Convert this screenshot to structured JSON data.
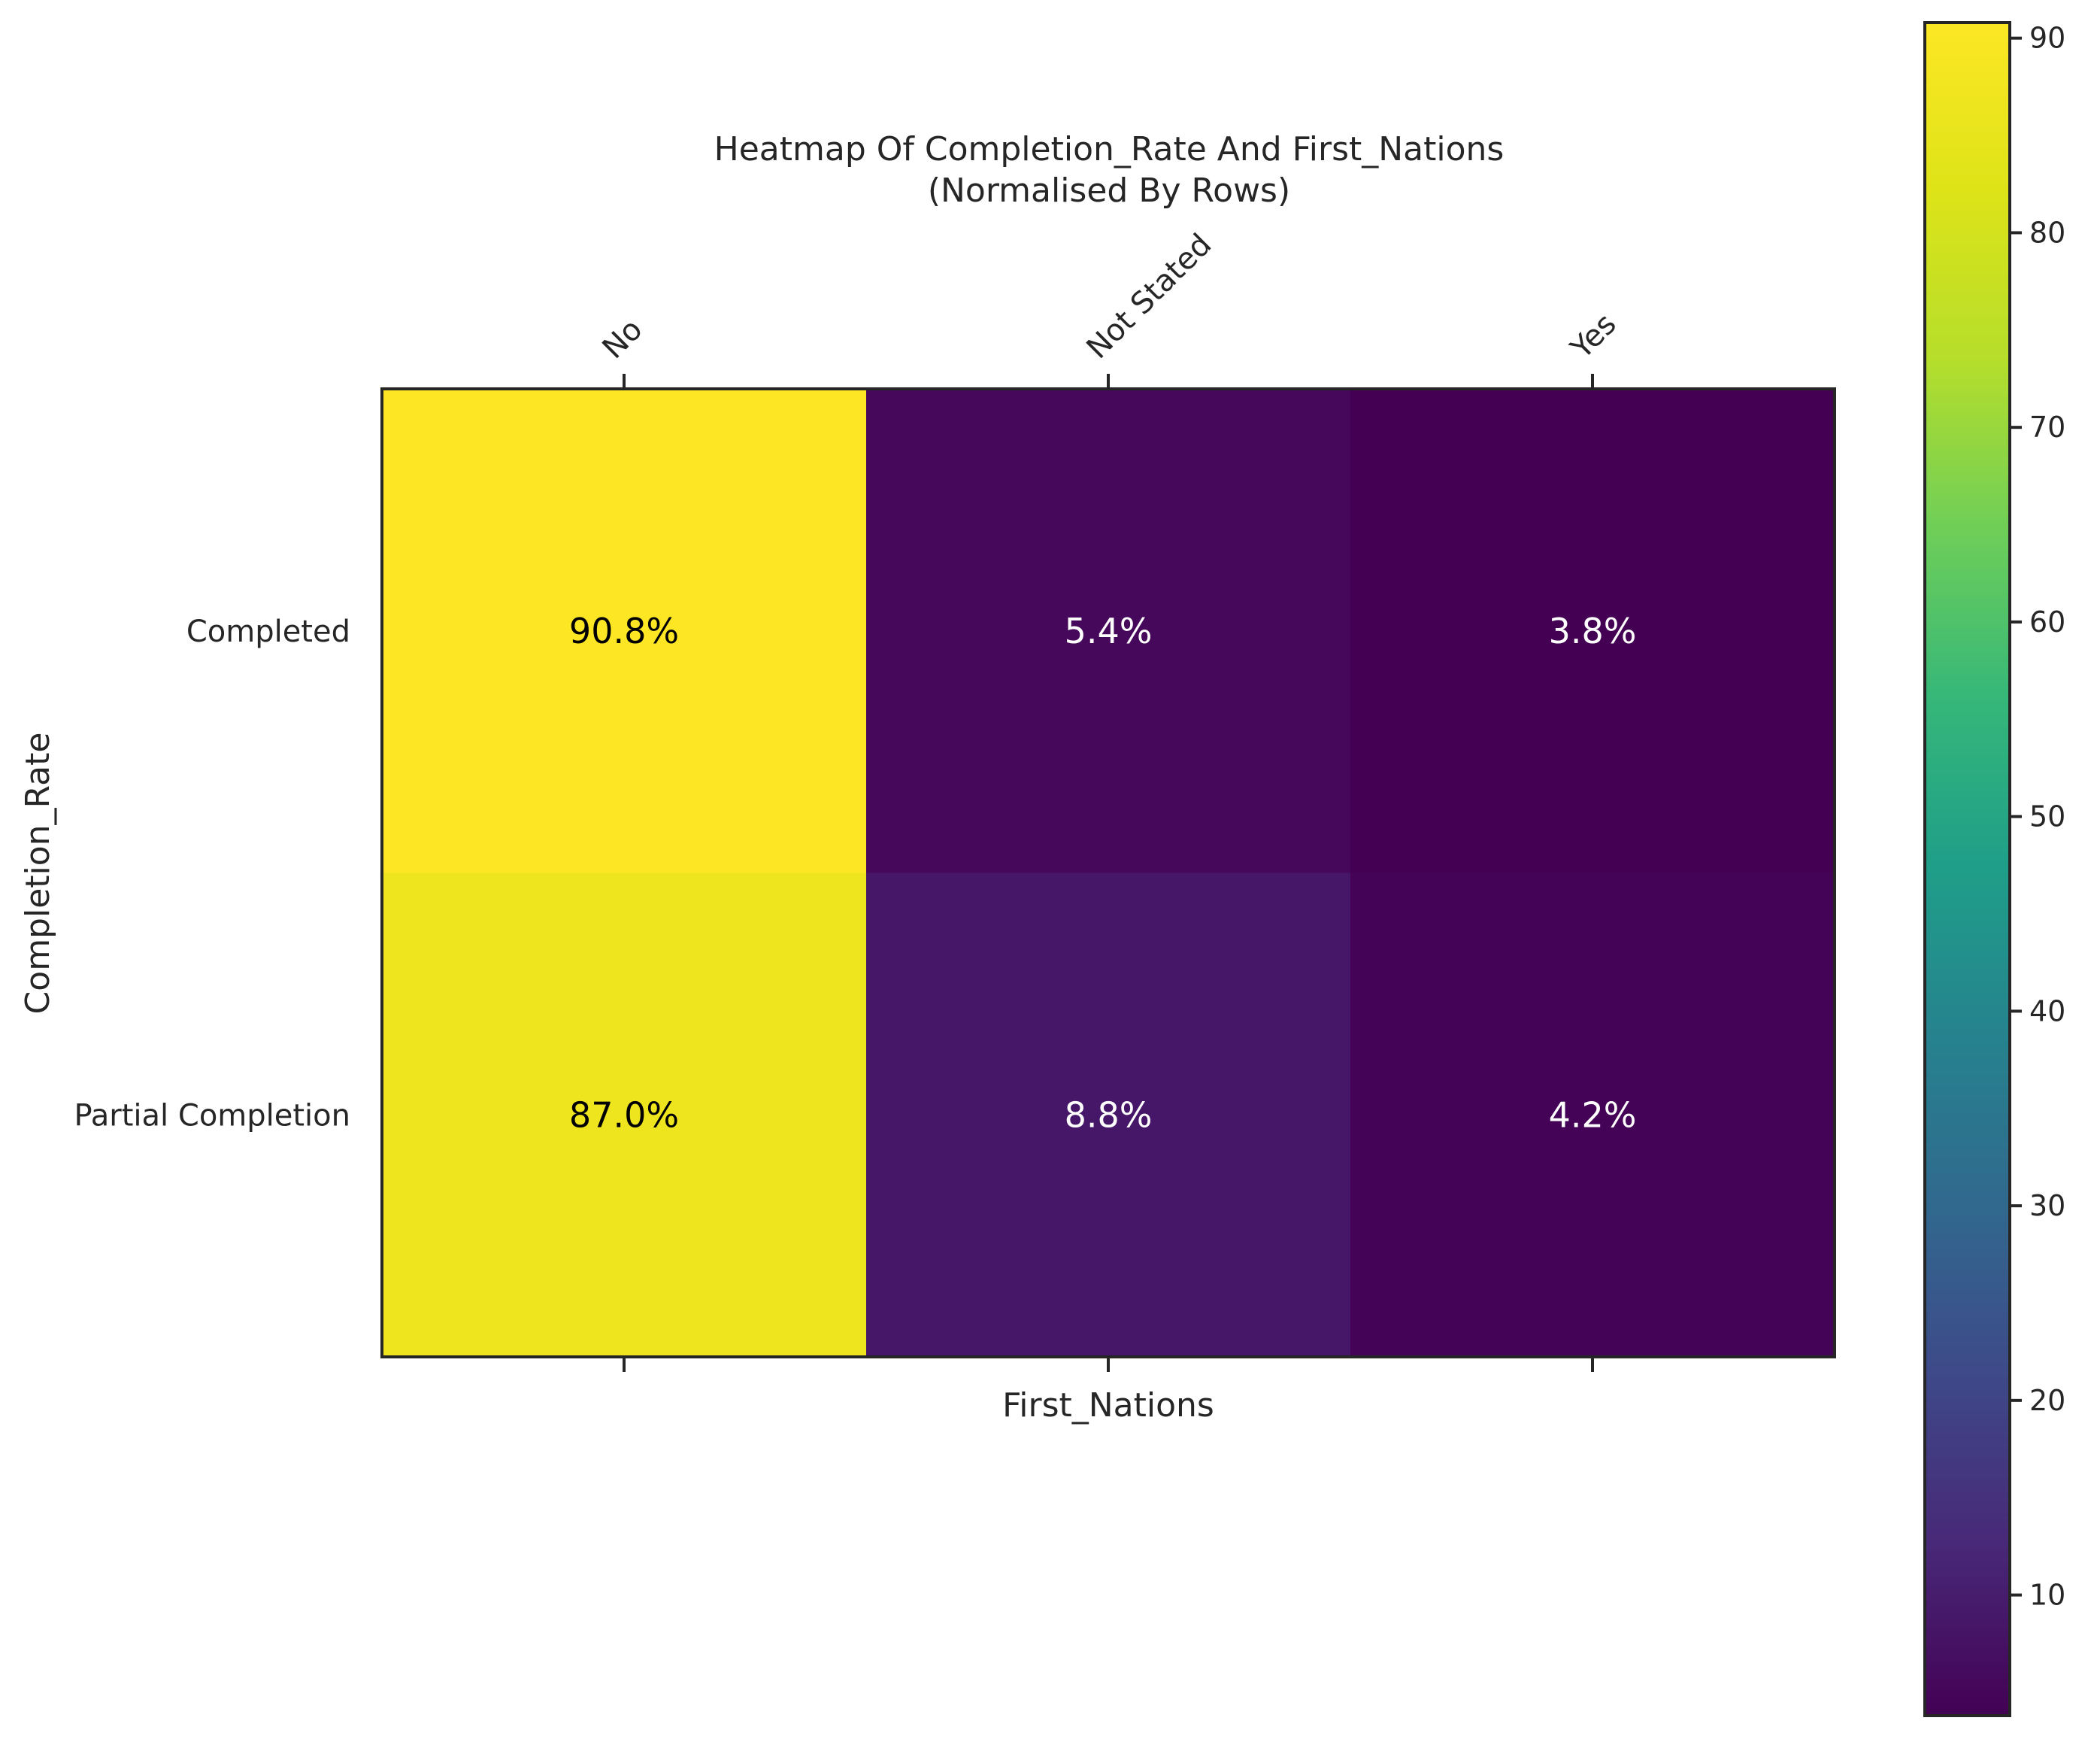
{
  "chart_data": {
    "type": "heatmap",
    "title": "Heatmap Of Completion_Rate And First_Nations",
    "subtitle": "(Normalised By Rows)",
    "xlabel": "First_Nations",
    "ylabel": "Completion_Rate",
    "x_categories": [
      "No",
      "Not Stated",
      "Yes"
    ],
    "y_categories": [
      "Completed",
      "Partial Completion"
    ],
    "values": [
      [
        90.8,
        5.4,
        3.8
      ],
      [
        87.0,
        8.8,
        4.2
      ]
    ],
    "cell_labels": [
      [
        "90.8%",
        "5.4%",
        "3.8%"
      ],
      [
        "87.0%",
        "8.8%",
        "4.2%"
      ]
    ],
    "colormap": "viridis",
    "colorbar": {
      "min": 3.8,
      "max": 90.8,
      "ticks": [
        10,
        20,
        30,
        40,
        50,
        60,
        70,
        80,
        90
      ],
      "tick_labels": [
        "10",
        "20",
        "30",
        "40",
        "50",
        "60",
        "70",
        "80",
        "90"
      ]
    },
    "grid": false,
    "x_tick_position": "top",
    "colors": {
      "frame": "#262626",
      "text_dark": "#000000",
      "text_light": "#ffffff"
    }
  }
}
